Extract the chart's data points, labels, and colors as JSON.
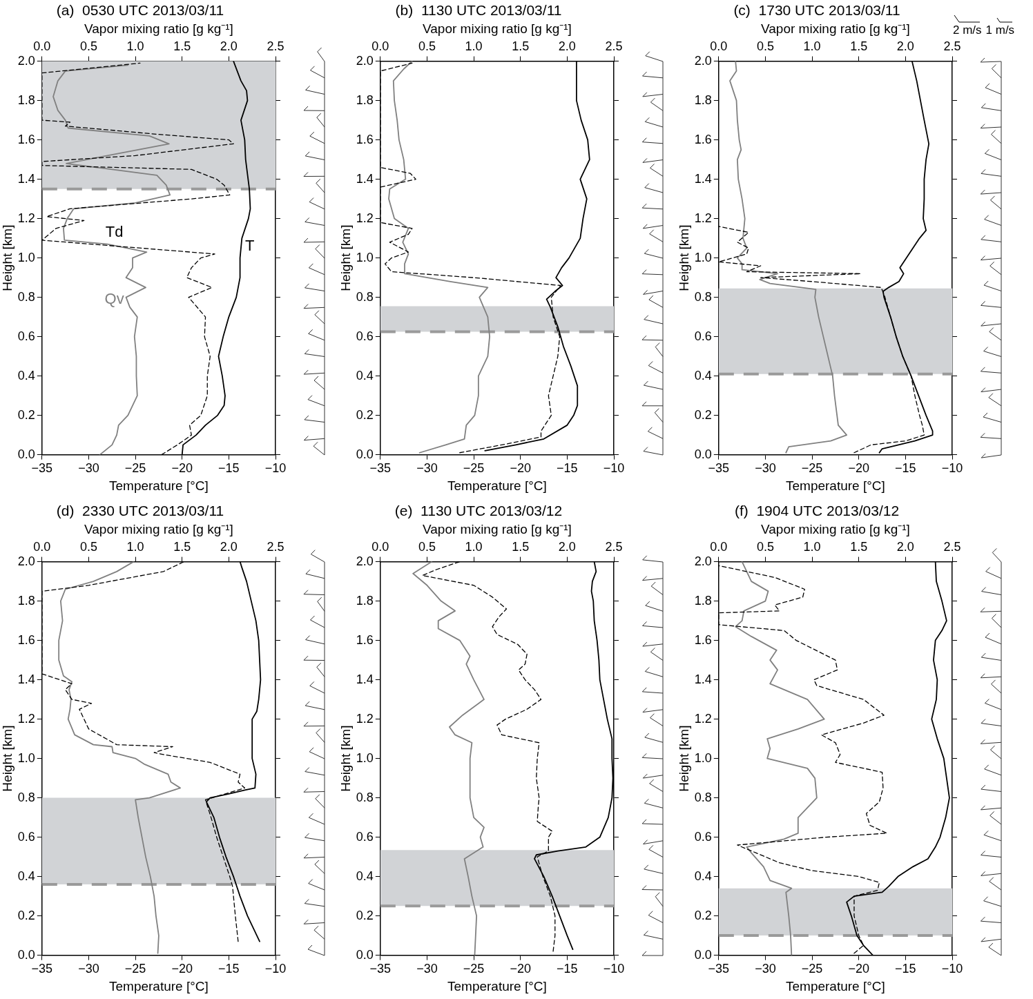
{
  "chart_data": [
    {
      "type": "line",
      "title": "(a)  0530 UTC 2013/03/11",
      "x2label": "Vapor mixing ratio [g kg⁻¹]",
      "xlabel": "Temperature [°C]",
      "ylabel": "Height [km]",
      "xlim": [
        -35,
        -10
      ],
      "xticks": [
        {
          "value": -35,
          "label": "−35"
        },
        {
          "value": -30,
          "label": "−30"
        },
        {
          "value": -25,
          "label": "−25"
        },
        {
          "value": -20,
          "label": "−20"
        },
        {
          "value": -15,
          "label": "−15"
        },
        {
          "value": -10,
          "label": "−10"
        }
      ],
      "x2lim": [
        0,
        2.5
      ],
      "x2ticks": [
        {
          "value": 0,
          "label": "0.0"
        },
        0.5,
        {
          "value": 1,
          "label": "1.0"
        },
        1.5,
        {
          "value": 2,
          "label": "2.0"
        },
        2.5
      ],
      "ylim": [
        0,
        2
      ],
      "yticks": [
        {
          "value": 0,
          "label": "0.0"
        },
        0.2,
        0.4,
        0.6,
        0.8,
        {
          "value": 1,
          "label": "1.0"
        },
        1.2,
        1.4,
        1.6,
        1.8,
        {
          "value": 2,
          "label": "2.0"
        }
      ],
      "grid": false,
      "legend": false,
      "marker": "none",
      "bands": [
        {
          "axis": "y",
          "from": 1.35,
          "to": 2.0,
          "color": "#d1d3d6"
        }
      ],
      "ref_lines": [
        {
          "axis": "y",
          "value": 1.35,
          "color": "#9a9a9a",
          "line_style": "dashed"
        }
      ],
      "series": [
        {
          "type": "line",
          "name": "T",
          "color": "#000000",
          "line_style": "solid",
          "x": [
            -20.0,
            -19.9,
            -18.5,
            -17.5,
            -16.2,
            -15.5,
            -15.4,
            -15.7,
            -16.1,
            -15.6,
            -15.0,
            -14.2,
            -13.8,
            -13.8,
            -13.6,
            -12.9,
            -12.7,
            -12.8,
            -13.2,
            -13.3,
            -13.7,
            -13.0,
            -13.1,
            -13.7,
            -14.5
          ],
          "values": [
            0.0,
            0.05,
            0.1,
            0.15,
            0.2,
            0.25,
            0.3,
            0.4,
            0.5,
            0.6,
            0.7,
            0.8,
            0.9,
            1.0,
            1.1,
            1.2,
            1.25,
            1.35,
            1.5,
            1.6,
            1.7,
            1.8,
            1.85,
            1.9,
            2.0
          ]
        },
        {
          "type": "line",
          "name": "Td",
          "color": "#000000",
          "line_style": "dashed",
          "x": [
            -22.2,
            -20.5,
            -19.0,
            -19.2,
            -18.0,
            -17.3,
            -17.3,
            -17.0,
            -17.6,
            -17.5,
            -19.3,
            -16.8,
            -19.5,
            -19.0,
            -18.0,
            -16.5,
            -35.0,
            -33.5,
            -30.5,
            -34.5,
            -32.0,
            -19.0,
            -14.9,
            -15.5,
            -16.3,
            -19.0,
            -35.0,
            -35.0,
            -25.0,
            -14.5,
            -15.0,
            -23.0,
            -32.5,
            -32.0,
            -35.0,
            -35.0,
            -24.5
          ],
          "values": [
            0.0,
            0.05,
            0.1,
            0.15,
            0.2,
            0.3,
            0.4,
            0.5,
            0.6,
            0.7,
            0.8,
            0.85,
            0.9,
            0.95,
            1.0,
            1.02,
            1.09,
            1.15,
            1.19,
            1.21,
            1.25,
            1.3,
            1.32,
            1.37,
            1.4,
            1.45,
            1.47,
            1.49,
            1.52,
            1.58,
            1.6,
            1.63,
            1.67,
            1.69,
            1.7,
            1.94,
            1.99
          ]
        },
        {
          "type": "line",
          "name": "Qv",
          "color": "#808080",
          "line_style": "solid",
          "axis": "x2",
          "x": [
            0.62,
            0.75,
            0.8,
            0.82,
            0.92,
            1.02,
            1.01,
            1.01,
            0.99,
            1.02,
            0.94,
            0.9,
            1.11,
            0.9,
            0.97,
            0.97,
            1.12,
            0.7,
            0.24,
            0.23,
            0.27,
            0.34,
            1.0,
            1.37,
            1.33,
            1.23,
            0.75,
            0.26,
            0.7,
            1.36,
            1.15,
            0.28,
            0.25,
            0.17,
            0.12,
            0.17,
            0.25,
            0.92
          ],
          "values": [
            0.0,
            0.05,
            0.1,
            0.15,
            0.2,
            0.3,
            0.4,
            0.5,
            0.6,
            0.7,
            0.75,
            0.8,
            0.85,
            0.9,
            0.95,
            1.0,
            1.03,
            1.07,
            1.09,
            1.15,
            1.2,
            1.25,
            1.28,
            1.32,
            1.37,
            1.42,
            1.45,
            1.48,
            1.52,
            1.58,
            1.62,
            1.66,
            1.7,
            1.75,
            1.82,
            1.9,
            1.95,
            1.98
          ]
        }
      ]
    },
    {
      "type": "line",
      "title": "(b)  1130 UTC 2013/03/11",
      "x2label": "Vapor mixing ratio [g kg⁻¹]",
      "xlabel": "Temperature [°C]",
      "ylabel": "Height [km]",
      "xlim": [
        -35,
        -10
      ],
      "xticks": [
        {
          "value": -35,
          "label": "−35"
        },
        {
          "value": -30,
          "label": "−30"
        },
        {
          "value": -25,
          "label": "−25"
        },
        {
          "value": -20,
          "label": "−20"
        },
        {
          "value": -15,
          "label": "−15"
        },
        {
          "value": -10,
          "label": "−10"
        }
      ],
      "x2lim": [
        0,
        2.5
      ],
      "x2ticks": [
        {
          "value": 0,
          "label": "0.0"
        },
        0.5,
        {
          "value": 1,
          "label": "1.0"
        },
        1.5,
        {
          "value": 2,
          "label": "2.0"
        },
        2.5
      ],
      "ylim": [
        0,
        2
      ],
      "yticks": [
        {
          "value": 0,
          "label": "0.0"
        },
        0.2,
        0.4,
        0.6,
        0.8,
        {
          "value": 1,
          "label": "1.0"
        },
        1.2,
        1.4,
        1.6,
        1.8,
        {
          "value": 2,
          "label": "2.0"
        }
      ],
      "grid": false,
      "legend": false,
      "marker": "none",
      "bands": [
        {
          "axis": "y",
          "from": 0.625,
          "to": 0.755,
          "color": "#d1d3d6"
        }
      ],
      "ref_lines": [
        {
          "axis": "y",
          "value": 0.625,
          "color": "#9a9a9a",
          "line_style": "dashed"
        }
      ],
      "series": [
        {
          "type": "line",
          "color": "#000000",
          "line_style": "solid",
          "x": [
            -23.8,
            -20.5,
            -17.5,
            -15.0,
            -14.3,
            -13.9,
            -13.9,
            -14.6,
            -15.4,
            -16.0,
            -16.8,
            -17.2,
            -16.3,
            -15.5,
            -16.2,
            -15.6,
            -14.8,
            -13.6,
            -13.3,
            -12.9,
            -13.6,
            -12.6,
            -12.8,
            -13.5,
            -14.0,
            -14.0
          ],
          "values": [
            0.02,
            0.05,
            0.08,
            0.15,
            0.2,
            0.25,
            0.35,
            0.45,
            0.55,
            0.65,
            0.75,
            0.79,
            0.83,
            0.86,
            0.9,
            0.95,
            1.0,
            1.1,
            1.2,
            1.3,
            1.4,
            1.5,
            1.6,
            1.7,
            1.8,
            2.0
          ]
        },
        {
          "type": "line",
          "color": "#000000",
          "line_style": "dashed",
          "x": [
            -26.5,
            -22.0,
            -17.8,
            -17.8,
            -16.7,
            -17.0,
            -16.5,
            -16.0,
            -15.8,
            -16.5,
            -16.7,
            -15.7,
            -25.0,
            -33.8,
            -34.5,
            -33.8,
            -32.0,
            -34.0,
            -32.0,
            -31.6,
            -35.0,
            -35.0,
            -31.2,
            -31.8,
            -35.0,
            -35.0,
            -31.6
          ],
          "values": [
            0.01,
            0.05,
            0.09,
            0.12,
            0.2,
            0.3,
            0.4,
            0.5,
            0.6,
            0.7,
            0.8,
            0.86,
            0.9,
            0.93,
            0.97,
            1.0,
            1.03,
            1.08,
            1.12,
            1.15,
            1.18,
            1.36,
            1.4,
            1.43,
            1.46,
            1.95,
            1.99
          ]
        },
        {
          "type": "line",
          "color": "#808080",
          "line_style": "solid",
          "axis": "x2",
          "x": [
            0.42,
            0.7,
            0.9,
            0.92,
            1.01,
            1.05,
            1.05,
            1.15,
            1.17,
            1.15,
            1.06,
            1.15,
            0.75,
            0.26,
            0.26,
            0.3,
            0.24,
            0.3,
            0.15,
            0.09,
            0.1,
            0.27,
            0.25,
            0.2,
            0.18,
            0.15,
            0.14,
            0.25,
            0.34
          ],
          "values": [
            0.01,
            0.05,
            0.08,
            0.15,
            0.2,
            0.3,
            0.4,
            0.5,
            0.6,
            0.7,
            0.8,
            0.85,
            0.88,
            0.92,
            0.97,
            1.02,
            1.08,
            1.15,
            1.2,
            1.3,
            1.35,
            1.4,
            1.5,
            1.6,
            1.7,
            1.8,
            1.9,
            1.96,
            2.0
          ]
        }
      ]
    },
    {
      "type": "line",
      "title": "(c)  1730 UTC 2013/03/11",
      "x2label": "Vapor mixing ratio [g kg⁻¹]",
      "xlabel": "Temperature [°C]",
      "ylabel": "Height [km]",
      "xlim": [
        -35,
        -10
      ],
      "xticks": [
        {
          "value": -35,
          "label": "−35"
        },
        {
          "value": -30,
          "label": "−30"
        },
        {
          "value": -25,
          "label": "−25"
        },
        {
          "value": -20,
          "label": "−20"
        },
        {
          "value": -15,
          "label": "−15"
        },
        {
          "value": -10,
          "label": "−10"
        }
      ],
      "x2lim": [
        0,
        2.5
      ],
      "x2ticks": [
        {
          "value": 0,
          "label": "0.0"
        },
        0.5,
        {
          "value": 1,
          "label": "1.0"
        },
        1.5,
        {
          "value": 2,
          "label": "2.0"
        },
        2.5
      ],
      "ylim": [
        0,
        2
      ],
      "yticks": [
        {
          "value": 0,
          "label": "0.0"
        },
        0.2,
        0.4,
        0.6,
        0.8,
        {
          "value": 1,
          "label": "1.0"
        },
        1.2,
        1.4,
        1.6,
        1.8,
        {
          "value": 2,
          "label": "2.0"
        }
      ],
      "grid": false,
      "legend": false,
      "marker": "none",
      "bands": [
        {
          "axis": "y",
          "from": 0.41,
          "to": 0.845,
          "color": "#d1d3d6"
        }
      ],
      "ref_lines": [
        {
          "axis": "y",
          "value": 0.41,
          "color": "#9a9a9a",
          "line_style": "dashed"
        }
      ],
      "annotations": [
        "2 m/s",
        "1 m/s"
      ],
      "series": [
        {
          "type": "line",
          "color": "#000000",
          "line_style": "solid",
          "x": [
            -17.8,
            -17.5,
            -14.0,
            -12.1,
            -12.1,
            -12.8,
            -13.6,
            -14.4,
            -15.3,
            -16.0,
            -16.6,
            -17.3,
            -17.4,
            -16.8,
            -15.7,
            -15.2,
            -15.6,
            -14.9,
            -13.5,
            -12.8,
            -13.1,
            -13.0,
            -13.0,
            -12.8,
            -12.5,
            -13.0,
            -13.4,
            -13.8,
            -14.3
          ],
          "values": [
            0.01,
            0.03,
            0.07,
            0.1,
            0.12,
            0.2,
            0.3,
            0.4,
            0.5,
            0.6,
            0.7,
            0.8,
            0.83,
            0.85,
            0.88,
            0.92,
            0.95,
            1.0,
            1.1,
            1.14,
            1.2,
            1.3,
            1.4,
            1.5,
            1.58,
            1.7,
            1.8,
            1.9,
            2.0
          ]
        },
        {
          "type": "line",
          "color": "#000000",
          "line_style": "dashed",
          "x": [
            -20.5,
            -18.7,
            -15.0,
            -13.0,
            -13.2,
            -13.5,
            -14.0,
            -14.4,
            -15.3,
            -16.0,
            -16.6,
            -17.2,
            -17.6,
            -25.0,
            -30.5,
            -19.8,
            -32.0,
            -30.5,
            -35.0,
            -32.0,
            -31.8,
            -33.0,
            -31.8,
            -35.0
          ],
          "values": [
            0.01,
            0.05,
            0.07,
            0.1,
            0.15,
            0.2,
            0.3,
            0.4,
            0.5,
            0.6,
            0.7,
            0.8,
            0.85,
            0.88,
            0.9,
            0.92,
            0.93,
            0.96,
            0.98,
            1.02,
            1.05,
            1.08,
            1.13,
            1.16
          ]
        },
        {
          "type": "line",
          "color": "#808080",
          "line_style": "solid",
          "axis": "x2",
          "x": [
            0.72,
            0.75,
            1.2,
            1.37,
            1.28,
            1.24,
            1.22,
            1.17,
            1.12,
            1.07,
            1.03,
            1.04,
            0.55,
            0.44,
            0.63,
            0.25,
            0.25,
            0.2,
            0.3,
            0.26,
            0.28,
            0.25,
            0.21,
            0.2,
            0.24,
            0.22,
            0.2,
            0.19,
            0.12,
            0.19,
            0.18
          ],
          "values": [
            0.01,
            0.04,
            0.07,
            0.1,
            0.15,
            0.3,
            0.4,
            0.5,
            0.6,
            0.7,
            0.8,
            0.84,
            0.87,
            0.89,
            0.92,
            0.94,
            0.97,
            1.0,
            1.05,
            1.1,
            1.2,
            1.3,
            1.4,
            1.5,
            1.55,
            1.6,
            1.7,
            1.8,
            1.9,
            1.95,
            2.0
          ]
        }
      ]
    },
    {
      "type": "line",
      "title": "(d)  2330 UTC 2013/03/11",
      "x2label": "Vapor mixing ratio [g kg⁻¹]",
      "xlabel": "Temperature [°C]",
      "ylabel": "Height [km]",
      "xlim": [
        -35,
        -10
      ],
      "xticks": [
        {
          "value": -35,
          "label": "−35"
        },
        {
          "value": -30,
          "label": "−30"
        },
        {
          "value": -25,
          "label": "−25"
        },
        {
          "value": -20,
          "label": "−20"
        },
        {
          "value": -15,
          "label": "−15"
        },
        {
          "value": -10,
          "label": "−10"
        }
      ],
      "x2lim": [
        0,
        2.5
      ],
      "x2ticks": [
        {
          "value": 0,
          "label": "0.0"
        },
        0.5,
        {
          "value": 1,
          "label": "1.0"
        },
        1.5,
        {
          "value": 2,
          "label": "2.0"
        },
        2.5
      ],
      "ylim": [
        0,
        2
      ],
      "yticks": [
        {
          "value": 0,
          "label": "0.0"
        },
        0.2,
        0.4,
        0.6,
        0.8,
        {
          "value": 1,
          "label": "1.0"
        },
        1.2,
        1.4,
        1.6,
        1.8,
        {
          "value": 2,
          "label": "2.0"
        }
      ],
      "grid": false,
      "legend": false,
      "marker": "none",
      "bands": [
        {
          "axis": "y",
          "from": 0.36,
          "to": 0.8,
          "color": "#d1d3d6"
        }
      ],
      "ref_lines": [
        {
          "axis": "y",
          "value": 0.36,
          "color": "#9a9a9a",
          "line_style": "dashed"
        }
      ],
      "series": [
        {
          "type": "line",
          "color": "#000000",
          "line_style": "solid",
          "x": [
            -11.7,
            -13.0,
            -13.8,
            -14.5,
            -15.3,
            -16.0,
            -16.6,
            -17.4,
            -17.0,
            -15.0,
            -13.2,
            -12.2,
            -12.1,
            -12.5,
            -12.5,
            -12.0,
            -11.8,
            -11.6,
            -11.7,
            -11.8,
            -12.1,
            -12.6,
            -13.1,
            -13.6,
            -13.8
          ],
          "values": [
            0.07,
            0.2,
            0.3,
            0.4,
            0.5,
            0.6,
            0.7,
            0.78,
            0.8,
            0.82,
            0.84,
            0.85,
            0.92,
            1.0,
            1.2,
            1.24,
            1.3,
            1.4,
            1.5,
            1.6,
            1.7,
            1.8,
            1.9,
            1.97,
            2.0
          ]
        },
        {
          "type": "line",
          "color": "#000000",
          "line_style": "dashed",
          "x": [
            -14.0,
            -14.3,
            -14.6,
            -14.9,
            -15.6,
            -16.3,
            -16.9,
            -17.5,
            -13.3,
            -14.0,
            -13.8,
            -17.0,
            -22.0,
            -23.0,
            -21.0,
            -27.0,
            -30.0,
            -30.5,
            -31.0,
            -29.7,
            -31.8,
            -32.5,
            -31.8,
            -35.0,
            -35.0,
            -30.0,
            -22.0,
            -19.8
          ],
          "values": [
            0.07,
            0.2,
            0.35,
            0.4,
            0.5,
            0.6,
            0.7,
            0.79,
            0.85,
            0.88,
            0.92,
            0.98,
            1.02,
            1.03,
            1.06,
            1.07,
            1.15,
            1.2,
            1.25,
            1.28,
            1.3,
            1.35,
            1.38,
            1.43,
            1.85,
            1.88,
            1.95,
            2.0
          ]
        },
        {
          "type": "line",
          "color": "#808080",
          "line_style": "solid",
          "axis": "x2",
          "x": [
            1.24,
            1.25,
            1.22,
            1.2,
            1.16,
            1.11,
            1.07,
            1.03,
            1.0,
            1.15,
            1.48,
            1.38,
            1.35,
            1.1,
            1.0,
            0.76,
            0.75,
            0.55,
            0.35,
            0.28,
            0.3,
            0.31,
            0.29,
            0.32,
            0.23,
            0.18,
            0.18,
            0.22,
            0.2,
            0.25,
            0.55,
            0.8,
            0.98
          ],
          "values": [
            0.01,
            0.1,
            0.2,
            0.3,
            0.4,
            0.5,
            0.6,
            0.7,
            0.79,
            0.8,
            0.85,
            0.88,
            0.92,
            0.97,
            1.0,
            1.03,
            1.06,
            1.07,
            1.12,
            1.2,
            1.25,
            1.3,
            1.35,
            1.39,
            1.42,
            1.5,
            1.6,
            1.7,
            1.8,
            1.86,
            1.9,
            1.95,
            2.0
          ]
        }
      ]
    },
    {
      "type": "line",
      "title": "(e)  1130 UTC 2013/03/12",
      "x2label": "Vapor mixing ratio [g kg⁻¹]",
      "xlabel": "Temperature [°C]",
      "ylabel": "Height [km]",
      "xlim": [
        -35,
        -10
      ],
      "xticks": [
        {
          "value": -35,
          "label": "−35"
        },
        {
          "value": -30,
          "label": "−30"
        },
        {
          "value": -25,
          "label": "−25"
        },
        {
          "value": -20,
          "label": "−20"
        },
        {
          "value": -15,
          "label": "−15"
        },
        {
          "value": -10,
          "label": "−10"
        }
      ],
      "x2lim": [
        0,
        2.5
      ],
      "x2ticks": [
        {
          "value": 0,
          "label": "0.0"
        },
        0.5,
        {
          "value": 1,
          "label": "1.0"
        },
        1.5,
        {
          "value": 2,
          "label": "2.0"
        },
        2.5
      ],
      "ylim": [
        0,
        2
      ],
      "yticks": [
        {
          "value": 0,
          "label": "0.0"
        },
        0.2,
        0.4,
        0.6,
        0.8,
        {
          "value": 1,
          "label": "1.0"
        },
        1.2,
        1.4,
        1.6,
        1.8,
        {
          "value": 2,
          "label": "2.0"
        }
      ],
      "grid": false,
      "legend": false,
      "marker": "none",
      "bands": [
        {
          "axis": "y",
          "from": 0.25,
          "to": 0.535,
          "color": "#d1d3d6"
        }
      ],
      "ref_lines": [
        {
          "axis": "y",
          "value": 0.25,
          "color": "#9a9a9a",
          "line_style": "dashed"
        }
      ],
      "series": [
        {
          "type": "line",
          "color": "#000000",
          "line_style": "solid",
          "x": [
            -14.4,
            -15.0,
            -15.8,
            -16.6,
            -17.5,
            -18.5,
            -18.3,
            -16.0,
            -13.0,
            -11.5,
            -10.6,
            -10.2,
            -10.1,
            -10.2,
            -10.2,
            -10.7,
            -11.1,
            -11.5,
            -11.6,
            -11.8,
            -12.1,
            -12.2,
            -12.4,
            -12.3,
            -11.9,
            -12.1
          ],
          "values": [
            0.03,
            0.1,
            0.2,
            0.3,
            0.4,
            0.49,
            0.51,
            0.53,
            0.55,
            0.6,
            0.7,
            0.8,
            0.9,
            1.0,
            1.1,
            1.2,
            1.3,
            1.4,
            1.5,
            1.6,
            1.7,
            1.8,
            1.85,
            1.9,
            1.95,
            2.0
          ]
        },
        {
          "type": "line",
          "color": "#000000",
          "line_style": "dashed",
          "x": [
            -16.5,
            -16.3,
            -16.3,
            -16.8,
            -17.6,
            -18.2,
            -17.0,
            -17.0,
            -16.6,
            -18.2,
            -18.1,
            -18.0,
            -18.3,
            -18.2,
            -18.0,
            -22.0,
            -22.5,
            -21.6,
            -19.3,
            -17.8,
            -18.5,
            -19.5,
            -20.2,
            -19.5,
            -19.3,
            -20.3,
            -22.5,
            -23.0,
            -22.3,
            -21.5,
            -23.0,
            -25.0,
            -30.5,
            -29.0,
            -26.5
          ],
          "values": [
            0.02,
            0.1,
            0.2,
            0.3,
            0.4,
            0.5,
            0.53,
            0.6,
            0.63,
            0.68,
            0.75,
            0.8,
            0.9,
            1.0,
            1.08,
            1.12,
            1.17,
            1.2,
            1.25,
            1.3,
            1.35,
            1.4,
            1.45,
            1.48,
            1.53,
            1.58,
            1.63,
            1.67,
            1.72,
            1.76,
            1.82,
            1.88,
            1.93,
            1.96,
            2.0
          ]
        },
        {
          "type": "line",
          "color": "#808080",
          "line_style": "solid",
          "axis": "x2",
          "x": [
            1.01,
            1.02,
            1.03,
            0.98,
            0.94,
            0.9,
            1.1,
            1.07,
            1.11,
            1.0,
            0.96,
            0.96,
            0.98,
            0.8,
            0.74,
            0.88,
            1.11,
            1.0,
            0.92,
            0.96,
            0.85,
            0.62,
            0.62,
            0.8,
            0.65,
            0.5,
            0.35,
            0.55
          ],
          "values": [
            0.0,
            0.1,
            0.2,
            0.3,
            0.4,
            0.49,
            0.55,
            0.6,
            0.65,
            0.7,
            0.8,
            1.0,
            1.08,
            1.12,
            1.16,
            1.22,
            1.3,
            1.4,
            1.48,
            1.52,
            1.6,
            1.66,
            1.7,
            1.75,
            1.8,
            1.88,
            1.94,
            2.0
          ]
        }
      ]
    },
    {
      "type": "line",
      "title": "(f)  1904 UTC 2013/03/12",
      "x2label": "Vapor mixing ratio [g kg⁻¹]",
      "xlabel": "Temperature [°C]",
      "ylabel": "Height [km]",
      "xlim": [
        -35,
        -10
      ],
      "xticks": [
        {
          "value": -35,
          "label": "−35"
        },
        {
          "value": -30,
          "label": "−30"
        },
        {
          "value": -25,
          "label": "−25"
        },
        {
          "value": -20,
          "label": "−20"
        },
        {
          "value": -15,
          "label": "−15"
        },
        {
          "value": -10,
          "label": "−10"
        }
      ],
      "x2lim": [
        0,
        2.5
      ],
      "x2ticks": [
        {
          "value": 0,
          "label": "0.0"
        },
        0.5,
        {
          "value": 1,
          "label": "1.0"
        },
        1.5,
        {
          "value": 2,
          "label": "2.0"
        },
        2.5
      ],
      "ylim": [
        0,
        2
      ],
      "yticks": [
        {
          "value": 0,
          "label": "0.0"
        },
        0.2,
        0.4,
        0.6,
        0.8,
        {
          "value": 1,
          "label": "1.0"
        },
        1.2,
        1.4,
        1.6,
        1.8,
        {
          "value": 2,
          "label": "2.0"
        }
      ],
      "grid": false,
      "legend": false,
      "marker": "none",
      "bands": [
        {
          "axis": "y",
          "from": 0.1,
          "to": 0.34,
          "color": "#d1d3d6"
        }
      ],
      "ref_lines": [
        {
          "axis": "y",
          "value": 0.1,
          "color": "#9a9a9a",
          "line_style": "dashed"
        }
      ],
      "series": [
        {
          "type": "line",
          "color": "#000000",
          "line_style": "solid",
          "x": [
            -18.5,
            -19.5,
            -20.2,
            -20.8,
            -21.3,
            -20.5,
            -17.5,
            -16.8,
            -15.8,
            -14.2,
            -12.6,
            -11.8,
            -11.3,
            -10.7,
            -10.3,
            -10.6,
            -10.9,
            -11.6,
            -12.2,
            -11.7,
            -11.6,
            -12.0,
            -11.8,
            -11.1,
            -10.6,
            -11.1,
            -11.7,
            -11.8
          ],
          "values": [
            0.0,
            0.05,
            0.1,
            0.2,
            0.27,
            0.3,
            0.32,
            0.35,
            0.4,
            0.45,
            0.49,
            0.55,
            0.6,
            0.7,
            0.8,
            0.9,
            1.0,
            1.1,
            1.2,
            1.3,
            1.4,
            1.5,
            1.6,
            1.65,
            1.7,
            1.8,
            1.9,
            2.0
          ]
        },
        {
          "type": "line",
          "color": "#000000",
          "line_style": "dashed",
          "x": [
            -20.5,
            -19.5,
            -20.0,
            -20.5,
            -20.5,
            -18.0,
            -17.8,
            -20.0,
            -25.0,
            -28.5,
            -31.0,
            -33.0,
            -23.5,
            -17.0,
            -18.8,
            -19.2,
            -17.8,
            -17.4,
            -17.5,
            -22.5,
            -22.0,
            -22.5,
            -24.0,
            -19.5,
            -17.3,
            -19.5,
            -24.5,
            -24.8,
            -22.3,
            -22.5,
            -26.7,
            -28.0,
            -35.0,
            -35.0,
            -28.5,
            -29.0,
            -26.0,
            -25.8,
            -29.0,
            -35.0
          ],
          "values": [
            0.01,
            0.05,
            0.1,
            0.2,
            0.3,
            0.33,
            0.37,
            0.4,
            0.43,
            0.47,
            0.52,
            0.56,
            0.6,
            0.62,
            0.66,
            0.72,
            0.78,
            0.85,
            0.93,
            0.98,
            1.02,
            1.08,
            1.12,
            1.18,
            1.22,
            1.3,
            1.37,
            1.4,
            1.45,
            1.5,
            1.6,
            1.65,
            1.68,
            1.74,
            1.75,
            1.78,
            1.82,
            1.86,
            1.92,
            1.98
          ]
        },
        {
          "type": "line",
          "color": "#808080",
          "line_style": "solid",
          "axis": "x2",
          "x": [
            0.78,
            0.77,
            0.75,
            0.72,
            0.78,
            0.55,
            0.48,
            0.35,
            0.3,
            0.7,
            0.85,
            0.85,
            0.95,
            1.05,
            1.03,
            0.95,
            0.52,
            0.55,
            0.52,
            0.85,
            1.13,
            0.95,
            0.55,
            0.63,
            0.55,
            0.62,
            0.35,
            0.18,
            0.25,
            0.27,
            0.5,
            0.53,
            0.35,
            0.25
          ],
          "values": [
            0.0,
            0.1,
            0.2,
            0.32,
            0.34,
            0.38,
            0.45,
            0.52,
            0.55,
            0.59,
            0.62,
            0.7,
            0.75,
            0.8,
            0.9,
            0.95,
            1.0,
            1.05,
            1.1,
            1.15,
            1.2,
            1.3,
            1.38,
            1.45,
            1.5,
            1.55,
            1.62,
            1.67,
            1.7,
            1.75,
            1.8,
            1.85,
            1.9,
            2.0
          ]
        }
      ]
    }
  ]
}
